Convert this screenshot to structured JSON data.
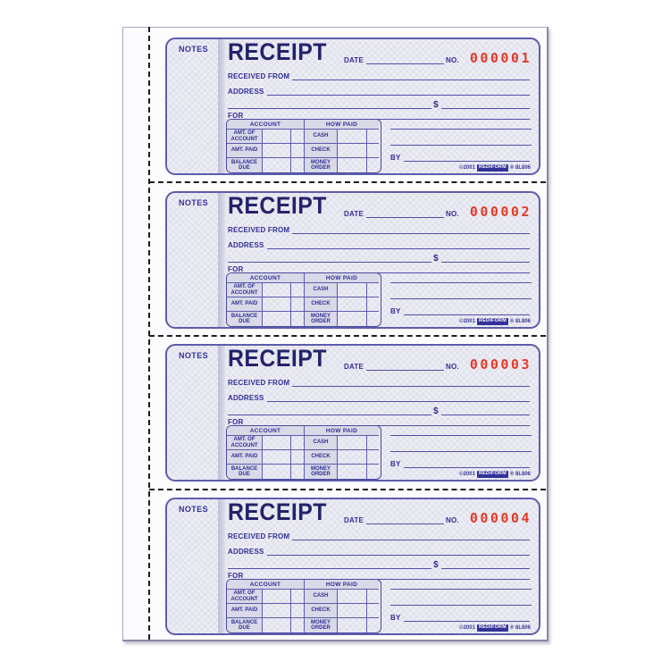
{
  "labels": {
    "notes": "NOTES",
    "title": "RECEIPT",
    "date": "DATE",
    "no": "NO.",
    "received_from": "RECEIVED FROM",
    "address": "ADDRESS",
    "dollar": "$",
    "for": "FOR",
    "by": "BY",
    "table": {
      "account_header": "ACCOUNT",
      "how_paid_header": "HOW PAID",
      "rows": [
        [
          "AMT. OF ACCOUNT",
          "CASH"
        ],
        [
          "AMT. PAID",
          "CHECK"
        ],
        [
          "BALANCE DUE",
          "MONEY ORDER"
        ]
      ]
    },
    "colophon": {
      "copyright": "©2001",
      "brand": "REDIFORM",
      "product_code": "® 8L806"
    }
  },
  "receipts": [
    {
      "serial": "000001"
    },
    {
      "serial": "000002"
    },
    {
      "serial": "000003"
    },
    {
      "serial": "000004"
    }
  ],
  "colors": {
    "ink_blue": "#2f2f96",
    "title_navy": "#23236b",
    "serial_red": "#e23a28",
    "card_border": "#5d5dab",
    "cell_shade": "#d9d9e8",
    "perforation": "#1c1c1c"
  }
}
